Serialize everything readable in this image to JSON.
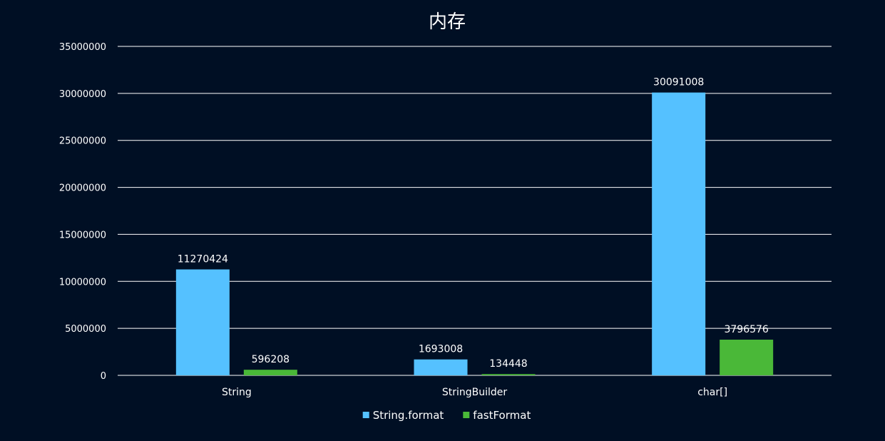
{
  "chart_data": {
    "type": "bar",
    "title": "内存",
    "xlabel": "",
    "ylabel": "",
    "categories": [
      "String",
      "StringBuilder",
      "char[]"
    ],
    "series": [
      {
        "name": "String.format",
        "values": [
          11270424,
          1693008,
          30091008
        ],
        "color": "#55c1ff"
      },
      {
        "name": "fastFormat",
        "values": [
          596208,
          134448,
          3796576
        ],
        "color": "#4ab838"
      }
    ],
    "y_ticks": [
      "0",
      "5000000",
      "10000000",
      "15000000",
      "20000000",
      "25000000",
      "30000000",
      "35000000"
    ],
    "ylim": [
      0,
      35000000
    ],
    "grid": true,
    "legend_position": "bottom"
  }
}
